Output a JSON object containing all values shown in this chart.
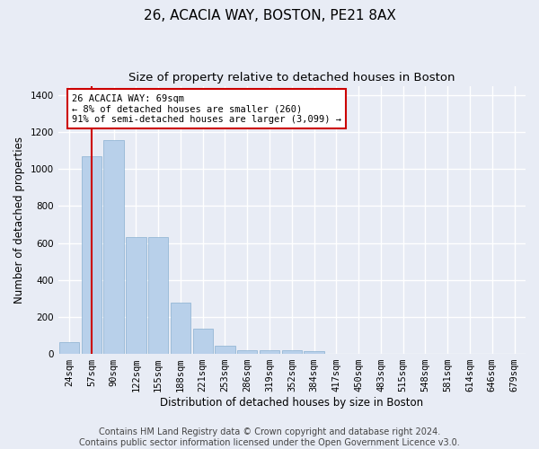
{
  "title": "26, ACACIA WAY, BOSTON, PE21 8AX",
  "subtitle": "Size of property relative to detached houses in Boston",
  "xlabel": "Distribution of detached houses by size in Boston",
  "ylabel": "Number of detached properties",
  "footer_line1": "Contains HM Land Registry data © Crown copyright and database right 2024.",
  "footer_line2": "Contains public sector information licensed under the Open Government Licence v3.0.",
  "categories": [
    "24sqm",
    "57sqm",
    "90sqm",
    "122sqm",
    "155sqm",
    "188sqm",
    "221sqm",
    "253sqm",
    "286sqm",
    "319sqm",
    "352sqm",
    "384sqm",
    "417sqm",
    "450sqm",
    "483sqm",
    "515sqm",
    "548sqm",
    "581sqm",
    "614sqm",
    "646sqm",
    "679sqm"
  ],
  "values": [
    62,
    1070,
    1155,
    632,
    632,
    276,
    135,
    45,
    20,
    20,
    20,
    14,
    0,
    0,
    0,
    0,
    0,
    0,
    0,
    0,
    0
  ],
  "bar_color": "#b8d0ea",
  "bar_edge_color": "#8ab0d0",
  "highlight_bar_index": 1,
  "highlight_color": "#cc0000",
  "annotation_text": "26 ACACIA WAY: 69sqm\n← 8% of detached houses are smaller (260)\n91% of semi-detached houses are larger (3,099) →",
  "annotation_box_color": "#ffffff",
  "annotation_box_edge": "#cc0000",
  "ylim": [
    0,
    1450
  ],
  "yticks": [
    0,
    200,
    400,
    600,
    800,
    1000,
    1200,
    1400
  ],
  "bg_color": "#e8ecf5",
  "plot_bg_color": "#e8ecf5",
  "grid_color": "#ffffff",
  "title_fontsize": 11,
  "subtitle_fontsize": 9.5,
  "label_fontsize": 8.5,
  "tick_fontsize": 7.5,
  "footer_fontsize": 7
}
